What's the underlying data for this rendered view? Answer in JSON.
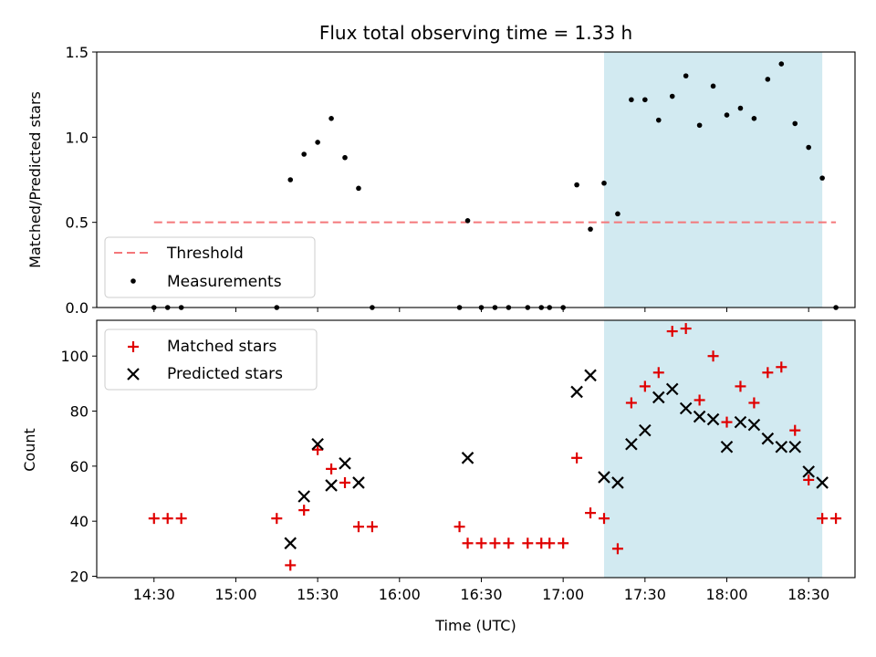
{
  "colors": {
    "threshold": "#f4777a",
    "measurement": "#000000",
    "matched": "#e00000",
    "predicted": "#000000",
    "shade": "#add8e6"
  },
  "chart_data": [
    {
      "type": "scatter",
      "title": "Flux total observing time = 1.33 h",
      "xlabel": "",
      "ylabel": "Matched/Predicted stars",
      "xlim": [
        "14:09",
        "18:47"
      ],
      "ylim": [
        0,
        1.5
      ],
      "y_ticks": [
        "0.0",
        "0.5",
        "1.0",
        "1.5"
      ],
      "y_tick_values": [
        0,
        0.5,
        1.0,
        1.5
      ],
      "shaded_region": [
        "17:15",
        "18:35"
      ],
      "legend": {
        "placement": "lower-left",
        "threshold_label": "Threshold",
        "measurements_label": "Measurements"
      },
      "threshold": {
        "y": 0.5,
        "x_range": [
          "14:30",
          "18:40"
        ],
        "style": "dashed"
      },
      "series": [
        {
          "name": "Measurements",
          "points": [
            [
              "14:30",
              0
            ],
            [
              "14:35",
              0
            ],
            [
              "14:40",
              0
            ],
            [
              "15:15",
              0
            ],
            [
              "15:20",
              0.75
            ],
            [
              "15:25",
              0.9
            ],
            [
              "15:30",
              0.97
            ],
            [
              "15:35",
              1.11
            ],
            [
              "15:40",
              0.88
            ],
            [
              "15:45",
              0.7
            ],
            [
              "15:50",
              0
            ],
            [
              "16:22",
              0
            ],
            [
              "16:25",
              0.51
            ],
            [
              "16:30",
              0
            ],
            [
              "16:35",
              0
            ],
            [
              "16:40",
              0
            ],
            [
              "16:47",
              0
            ],
            [
              "16:52",
              0
            ],
            [
              "16:55",
              0
            ],
            [
              "17:00",
              0
            ],
            [
              "17:05",
              0.72
            ],
            [
              "17:10",
              0.46
            ],
            [
              "17:15",
              0.73
            ],
            [
              "17:20",
              0.55
            ],
            [
              "17:25",
              1.22
            ],
            [
              "17:30",
              1.22
            ],
            [
              "17:35",
              1.1
            ],
            [
              "17:40",
              1.24
            ],
            [
              "17:45",
              1.36
            ],
            [
              "17:50",
              1.07
            ],
            [
              "17:55",
              1.3
            ],
            [
              "18:00",
              1.13
            ],
            [
              "18:05",
              1.17
            ],
            [
              "18:10",
              1.11
            ],
            [
              "18:15",
              1.34
            ],
            [
              "18:20",
              1.43
            ],
            [
              "18:25",
              1.08
            ],
            [
              "18:30",
              0.94
            ],
            [
              "18:35",
              0.76
            ],
            [
              "18:40",
              0
            ]
          ]
        }
      ]
    },
    {
      "type": "scatter",
      "title": "",
      "xlabel": "Time (UTC)",
      "ylabel": "Count",
      "xlim": [
        "14:09",
        "18:47"
      ],
      "ylim": [
        19.5,
        113
      ],
      "x_ticks": [
        "14:30",
        "15:00",
        "15:30",
        "16:00",
        "16:30",
        "17:00",
        "17:30",
        "18:00",
        "18:30"
      ],
      "y_ticks": [
        "20",
        "40",
        "60",
        "80",
        "100"
      ],
      "y_tick_values": [
        20,
        40,
        60,
        80,
        100
      ],
      "shaded_region": [
        "17:15",
        "18:35"
      ],
      "legend": {
        "placement": "top-left",
        "matched_label": "Matched stars",
        "predicted_label": "Predicted stars"
      },
      "series": [
        {
          "name": "Matched stars",
          "marker": "+",
          "points": [
            [
              "14:30",
              41
            ],
            [
              "14:35",
              41
            ],
            [
              "14:40",
              41
            ],
            [
              "15:15",
              41
            ],
            [
              "15:20",
              24
            ],
            [
              "15:25",
              44
            ],
            [
              "15:30",
              66
            ],
            [
              "15:35",
              59
            ],
            [
              "15:40",
              54
            ],
            [
              "15:45",
              38
            ],
            [
              "15:50",
              38
            ],
            [
              "16:22",
              38
            ],
            [
              "16:25",
              32
            ],
            [
              "16:30",
              32
            ],
            [
              "16:35",
              32
            ],
            [
              "16:40",
              32
            ],
            [
              "16:47",
              32
            ],
            [
              "16:52",
              32
            ],
            [
              "16:55",
              32
            ],
            [
              "17:00",
              32
            ],
            [
              "17:05",
              63
            ],
            [
              "17:10",
              43
            ],
            [
              "17:15",
              41
            ],
            [
              "17:20",
              30
            ],
            [
              "17:25",
              83
            ],
            [
              "17:30",
              89
            ],
            [
              "17:35",
              94
            ],
            [
              "17:40",
              109
            ],
            [
              "17:45",
              110
            ],
            [
              "17:50",
              84
            ],
            [
              "17:55",
              100
            ],
            [
              "18:00",
              76
            ],
            [
              "18:05",
              89
            ],
            [
              "18:10",
              83
            ],
            [
              "18:15",
              94
            ],
            [
              "18:20",
              96
            ],
            [
              "18:25",
              73
            ],
            [
              "18:30",
              55
            ],
            [
              "18:35",
              41
            ],
            [
              "18:40",
              41
            ]
          ]
        },
        {
          "name": "Predicted stars",
          "marker": "x",
          "points": [
            [
              "15:20",
              32
            ],
            [
              "15:25",
              49
            ],
            [
              "15:30",
              68
            ],
            [
              "15:35",
              53
            ],
            [
              "15:40",
              61
            ],
            [
              "15:45",
              54
            ],
            [
              "16:25",
              63
            ],
            [
              "17:05",
              87
            ],
            [
              "17:10",
              93
            ],
            [
              "17:15",
              56
            ],
            [
              "17:20",
              54
            ],
            [
              "17:25",
              68
            ],
            [
              "17:30",
              73
            ],
            [
              "17:35",
              85
            ],
            [
              "17:40",
              88
            ],
            [
              "17:45",
              81
            ],
            [
              "17:50",
              78
            ],
            [
              "17:55",
              77
            ],
            [
              "18:00",
              67
            ],
            [
              "18:05",
              76
            ],
            [
              "18:10",
              75
            ],
            [
              "18:15",
              70
            ],
            [
              "18:20",
              67
            ],
            [
              "18:25",
              67
            ],
            [
              "18:30",
              58
            ],
            [
              "18:35",
              54
            ]
          ]
        }
      ]
    }
  ]
}
